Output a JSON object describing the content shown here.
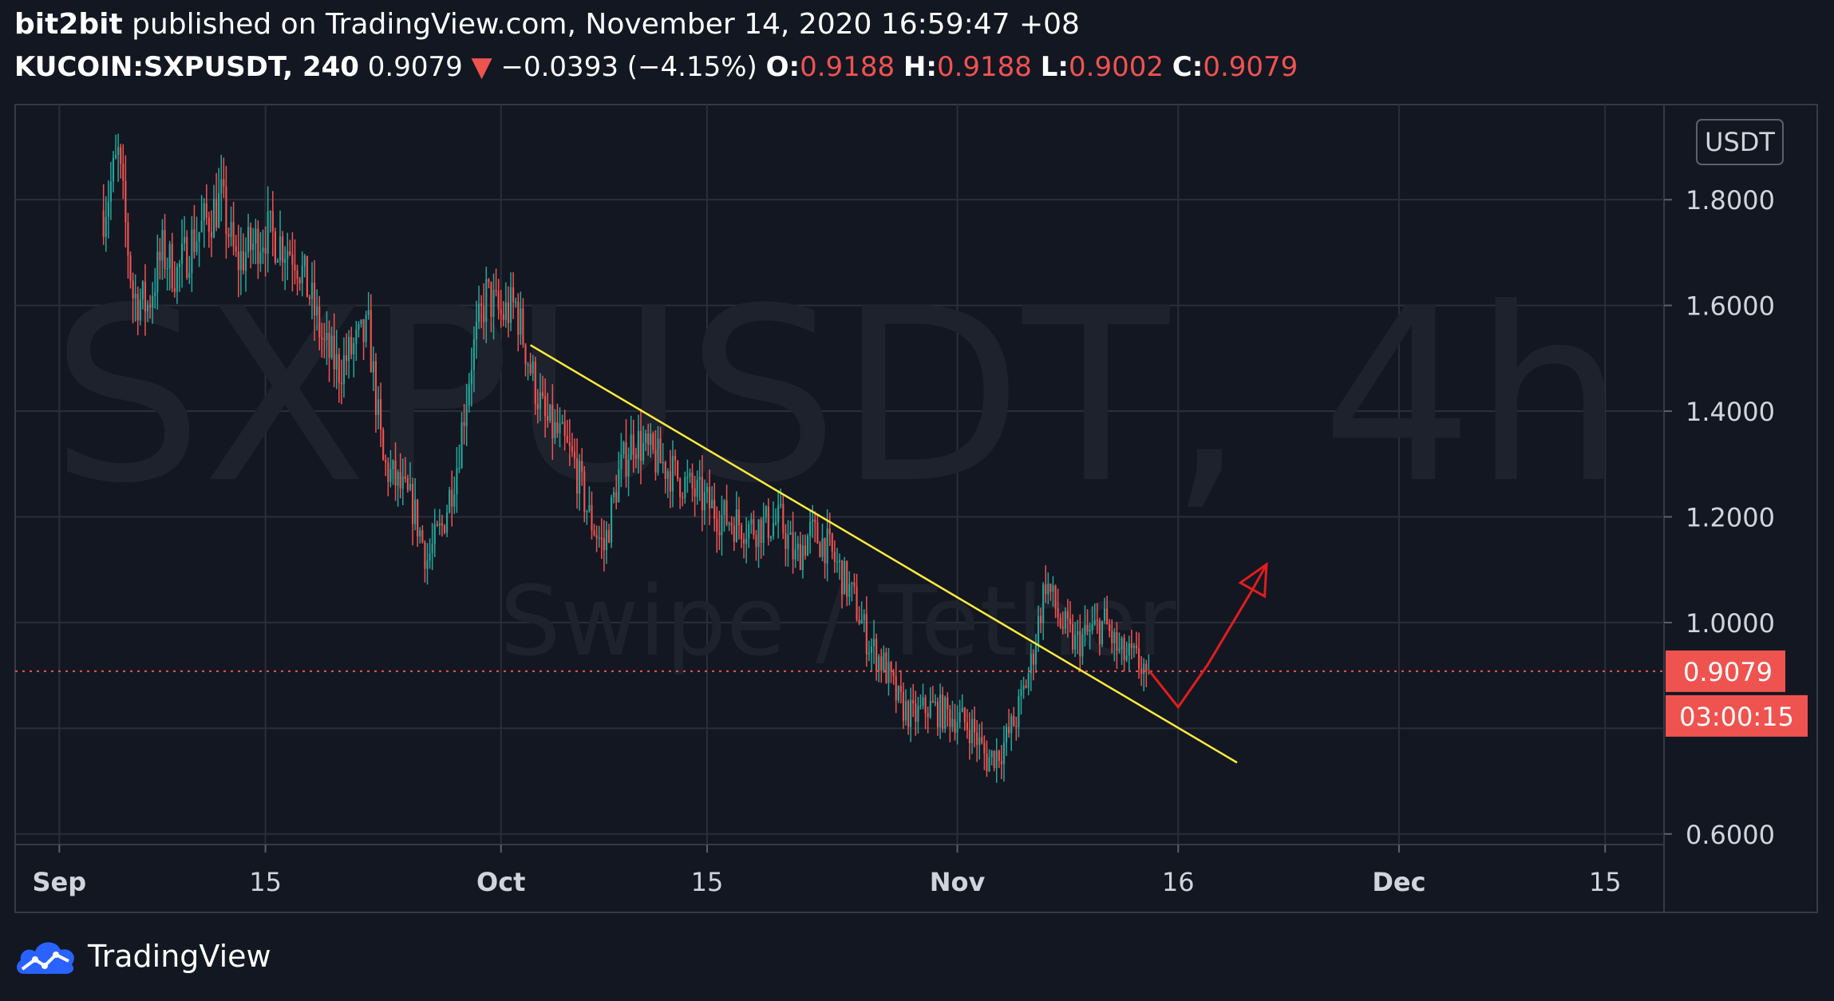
{
  "header": {
    "author": "bit2bit",
    "published": "published on TradingView.com, November 14, 2020 16:59:47 +08",
    "symbol": "KUCOIN:SXPUSDT, 240",
    "last": "0.9079",
    "down_arrow": "▼",
    "change": "−0.0393 (−4.15%)",
    "o_label": "O:",
    "o_value": "0.9188",
    "h_label": "H:",
    "h_value": "0.9188",
    "l_label": "L:",
    "l_value": "0.9002",
    "c_label": "C:",
    "c_value": "0.9079"
  },
  "colors": {
    "background": "#131722",
    "grid": "#2a2e39",
    "up": "#26a69a",
    "down": "#ef5350",
    "trendline": "#ffeb3b",
    "arrow": "#e01e1e",
    "text": "#d1d4dc"
  },
  "footer": {
    "brand": "TradingView",
    "logo": "tradingview-cloud-logo-icon"
  },
  "chart_data": {
    "type": "candlestick",
    "watermark_main": "SXPUSDT, 4h",
    "watermark_sub": "Swipe / Tether",
    "currency_label": "USDT",
    "y_ticks": [
      "1.8000",
      "1.6000",
      "1.4000",
      "1.2000",
      "1.0000",
      "0.6000"
    ],
    "y_tick_values": [
      1.8,
      1.6,
      1.4,
      1.2,
      1.0,
      0.6
    ],
    "ylim": [
      0.58,
      1.98
    ],
    "x_ticks": [
      "Sep",
      "15",
      "Oct",
      "15",
      "Nov",
      "16",
      "Dec",
      "15"
    ],
    "x_tick_dates": [
      "2020-09-01",
      "2020-09-15",
      "2020-10-01",
      "2020-10-15",
      "2020-11-01",
      "2020-11-16",
      "2020-12-01",
      "2020-12-15"
    ],
    "xlim": [
      "2020-08-29",
      "2020-12-19"
    ],
    "last_price": "0.9079",
    "last_price_value": 0.9079,
    "countdown": "03:00:15",
    "price_path": [
      [
        "2020-09-04",
        1.78
      ],
      [
        "2020-09-05",
        1.88
      ],
      [
        "2020-09-06",
        1.62
      ],
      [
        "2020-09-07",
        1.6
      ],
      [
        "2020-09-08",
        1.7
      ],
      [
        "2020-09-09",
        1.66
      ],
      [
        "2020-09-10",
        1.72
      ],
      [
        "2020-09-12",
        1.8
      ],
      [
        "2020-09-13",
        1.68
      ],
      [
        "2020-09-15",
        1.74
      ],
      [
        "2020-09-17",
        1.7
      ],
      [
        "2020-09-18",
        1.62
      ],
      [
        "2020-09-19",
        1.52
      ],
      [
        "2020-09-20",
        1.48
      ],
      [
        "2020-09-21",
        1.52
      ],
      [
        "2020-09-22",
        1.55
      ],
      [
        "2020-09-23",
        1.3
      ],
      [
        "2020-09-25",
        1.22
      ],
      [
        "2020-09-26",
        1.12
      ],
      [
        "2020-09-27",
        1.18
      ],
      [
        "2020-09-28",
        1.3
      ],
      [
        "2020-09-29",
        1.5
      ],
      [
        "2020-09-30",
        1.62
      ],
      [
        "2020-10-01",
        1.58
      ],
      [
        "2020-10-02",
        1.6
      ],
      [
        "2020-10-03",
        1.48
      ],
      [
        "2020-10-04",
        1.38
      ],
      [
        "2020-10-05",
        1.35
      ],
      [
        "2020-10-06",
        1.3
      ],
      [
        "2020-10-07",
        1.2
      ],
      [
        "2020-10-08",
        1.14
      ],
      [
        "2020-10-09",
        1.28
      ],
      [
        "2020-10-10",
        1.35
      ],
      [
        "2020-10-11",
        1.32
      ],
      [
        "2020-10-12",
        1.3
      ],
      [
        "2020-10-14",
        1.25
      ],
      [
        "2020-10-16",
        1.2
      ],
      [
        "2020-10-18",
        1.18
      ],
      [
        "2020-10-20",
        1.19
      ],
      [
        "2020-10-21",
        1.12
      ],
      [
        "2020-10-22",
        1.17
      ],
      [
        "2020-10-23",
        1.15
      ],
      [
        "2020-10-24",
        1.1
      ],
      [
        "2020-10-25",
        1.04
      ],
      [
        "2020-10-26",
        0.96
      ],
      [
        "2020-10-27",
        0.92
      ],
      [
        "2020-10-28",
        0.85
      ],
      [
        "2020-10-29",
        0.82
      ],
      [
        "2020-10-30",
        0.84
      ],
      [
        "2020-10-31",
        0.83
      ],
      [
        "2020-11-01",
        0.82
      ],
      [
        "2020-11-02",
        0.8
      ],
      [
        "2020-11-03",
        0.74
      ],
      [
        "2020-11-04",
        0.76
      ],
      [
        "2020-11-05",
        0.82
      ],
      [
        "2020-11-06",
        0.92
      ],
      [
        "2020-11-07",
        1.08
      ],
      [
        "2020-11-08",
        1.0
      ],
      [
        "2020-11-09",
        0.96
      ],
      [
        "2020-11-10",
        0.98
      ],
      [
        "2020-11-11",
        1.0
      ],
      [
        "2020-11-12",
        0.94
      ],
      [
        "2020-11-13",
        0.93
      ],
      [
        "2020-11-14",
        0.9079
      ]
    ],
    "drawings": {
      "trendline": {
        "from": [
          "2020-10-03",
          1.525
        ],
        "to": [
          "2020-11-20",
          0.735
        ]
      },
      "projection_arrow": [
        [
          "2020-11-14",
          0.91
        ],
        [
          "2020-11-16",
          0.84
        ],
        [
          "2020-11-18",
          0.92
        ],
        [
          "2020-11-21",
          1.06
        ],
        [
          "2020-11-22",
          1.11
        ]
      ]
    }
  }
}
